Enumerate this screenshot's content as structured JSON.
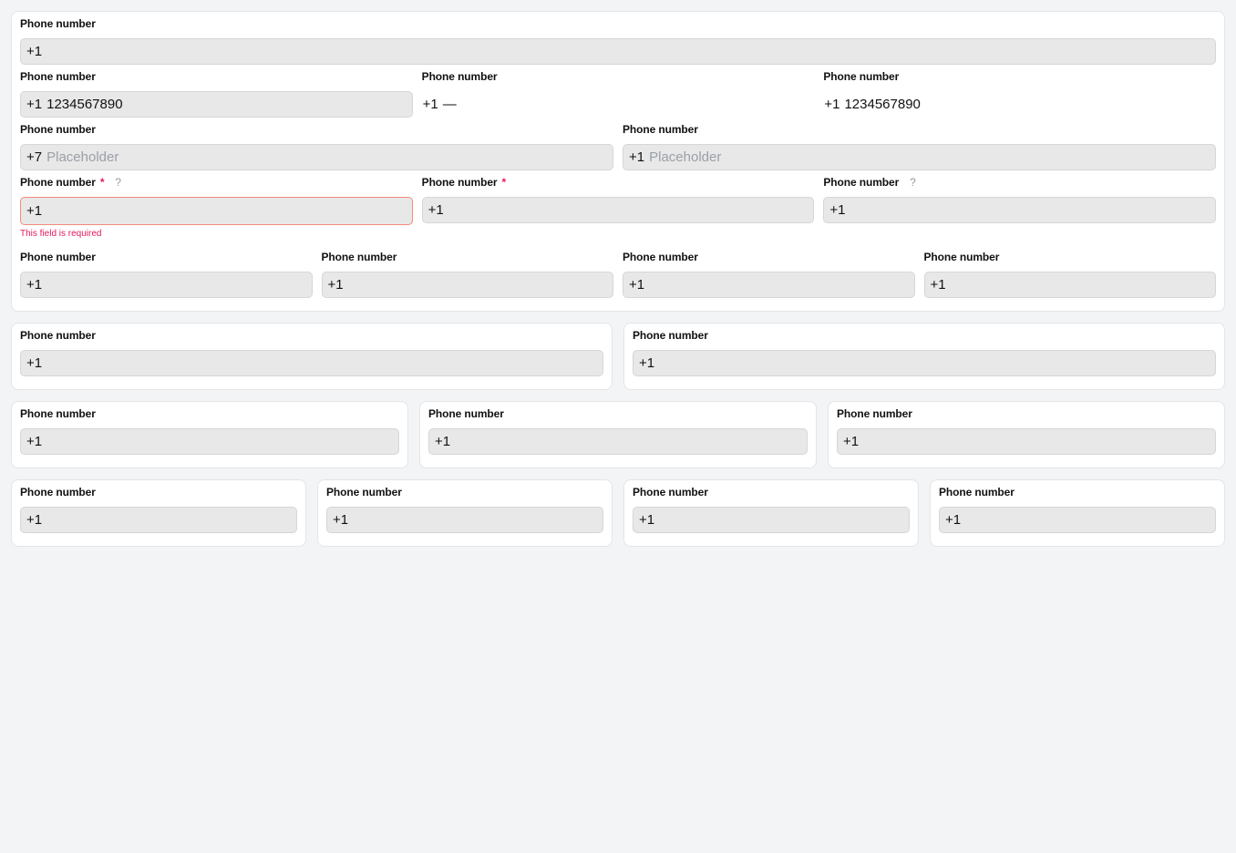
{
  "label": "Phone number",
  "error_text": "This field is required",
  "help_icon": "?",
  "required_mark": "*",
  "main_panel_rows": [
    [
      {
        "prefix": "+1",
        "value": "",
        "placeholder": ""
      }
    ],
    [
      {
        "prefix": "+1",
        "value": "1234567890"
      },
      {
        "prefix": "+1",
        "value": "—",
        "readonly": true
      },
      {
        "prefix": "+1",
        "value": "1234567890",
        "readonly": true
      }
    ],
    [
      {
        "prefix": "+7",
        "placeholder": "Placeholder"
      },
      {
        "prefix": "+1",
        "placeholder": "Placeholder"
      }
    ],
    [
      {
        "prefix": "+1",
        "required": true,
        "help": true,
        "error": true
      },
      {
        "prefix": "+1",
        "required": true
      },
      {
        "prefix": "+1",
        "help": true
      }
    ],
    [
      {
        "prefix": "+1"
      },
      {
        "prefix": "+1"
      },
      {
        "prefix": "+1"
      },
      {
        "prefix": "+1"
      }
    ]
  ],
  "card_groups": [
    [
      {
        "prefix": "+1"
      },
      {
        "prefix": "+1"
      }
    ],
    [
      {
        "prefix": "+1"
      },
      {
        "prefix": "+1"
      },
      {
        "prefix": "+1"
      }
    ],
    [
      {
        "prefix": "+1"
      },
      {
        "prefix": "+1"
      },
      {
        "prefix": "+1"
      },
      {
        "prefix": "+1"
      }
    ]
  ],
  "colors": {
    "error": "#e8195a",
    "error_border": "#f28a7a",
    "input_bg": "#e8e8e8",
    "page_bg": "#f3f4f6"
  }
}
